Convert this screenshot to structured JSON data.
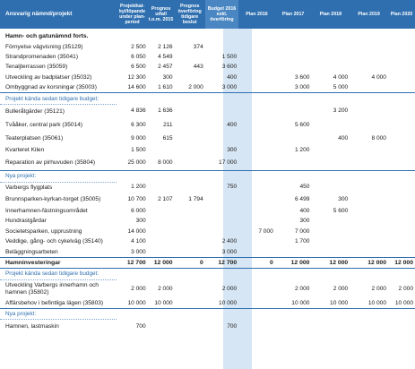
{
  "header": {
    "name": "Ansvarig nämnd/projekt",
    "c1": "Projektkal-kyl/löpande under plan-period",
    "c2": "Prognos utfall t.o.m. 2015",
    "c3": "Prognos överföring tidigare beslut",
    "c4": "Budget 2016 exkl. överföring",
    "c5": "Plan 2016",
    "c6": "Plan 2017",
    "c7": "Plan 2018",
    "c8": "Plan 2019",
    "c9": "Plan 2020"
  },
  "rows": [
    {
      "type": "section",
      "name": "Hamn- och gatunämnd forts.",
      "v": [
        "",
        "",
        "",
        "",
        "",
        "",
        "",
        "",
        ""
      ]
    },
    {
      "type": "item",
      "name": "Förnyelse vägvisning (35129)",
      "v": [
        "2 500",
        "2 126",
        "374",
        "",
        "",
        "",
        "",
        "",
        ""
      ]
    },
    {
      "type": "item",
      "name": "Strandpromenaden (35041)",
      "v": [
        "6 050",
        "4 549",
        "",
        "1 500",
        "",
        "",
        "",
        "",
        ""
      ]
    },
    {
      "type": "item",
      "name": "Tenaljterrassen (35059)",
      "v": [
        "6 500",
        "2 457",
        "443",
        "3 600",
        "",
        "",
        "",
        "",
        ""
      ]
    },
    {
      "type": "item",
      "name": "Utveckling av badplatser (35032)",
      "v": [
        "12 300",
        "300",
        "",
        "400",
        "",
        "3 600",
        "4 000",
        "4 000",
        ""
      ]
    },
    {
      "type": "item",
      "name": "Ombyggnad av korsningar (35003)",
      "v": [
        "14 600",
        "1 610",
        "2 000",
        "3 000",
        "",
        "3 000",
        "5 000",
        "",
        ""
      ]
    },
    {
      "type": "sub",
      "name": "Projekt kända sedan tidigare budget:",
      "v": [
        "",
        "",
        "",
        "",
        "",
        "",
        "",
        "",
        ""
      ]
    },
    {
      "type": "gap",
      "name": "Bulleråtgärder (35121)",
      "v": [
        "4 836",
        "1 636",
        "",
        "",
        "",
        "",
        "3 200",
        "",
        ""
      ]
    },
    {
      "type": "gap",
      "name": "Tvååker, central park (35014)",
      "v": [
        "6 300",
        "211",
        "",
        "400",
        "",
        "5 600",
        "",
        "",
        ""
      ]
    },
    {
      "type": "gap",
      "name": "Teaterplatsen (35061)",
      "v": [
        "9 000",
        "615",
        "",
        "",
        "",
        "",
        "400",
        "8 000",
        ""
      ]
    },
    {
      "type": "item",
      "name": "Kvarteret Kilen",
      "v": [
        "1 500",
        "",
        "",
        "300",
        "",
        "1 200",
        "",
        "",
        ""
      ]
    },
    {
      "type": "gap2",
      "name": "Reparation av pirhuvuden (35804)",
      "v": [
        "25 000",
        "8 000",
        "",
        "17 000",
        "",
        "",
        "",
        "",
        ""
      ]
    },
    {
      "type": "sub",
      "name": "Nya projekt:",
      "v": [
        "",
        "",
        "",
        "",
        "",
        "",
        "",
        "",
        ""
      ]
    },
    {
      "type": "item",
      "name": "Varbergs flygplats",
      "v": [
        "1 200",
        "",
        "",
        "750",
        "",
        "450",
        "",
        "",
        ""
      ]
    },
    {
      "type": "gap",
      "name": "Brunnsparken-kyrkan-torget (35005)",
      "v": [
        "10 700",
        "2 107",
        "1 794",
        "",
        "",
        "6 499",
        "300",
        "",
        ""
      ]
    },
    {
      "type": "item",
      "name": "Innerhamnen-fästningsområdet",
      "v": [
        "6 000",
        "",
        "",
        "",
        "",
        "400",
        "5 600",
        "",
        ""
      ]
    },
    {
      "type": "item",
      "name": "Hundrastgårdar",
      "v": [
        "300",
        "",
        "",
        "",
        "",
        "300",
        "",
        "",
        ""
      ]
    },
    {
      "type": "item",
      "name": "Societetsparken, upprustning",
      "v": [
        "14 000",
        "",
        "",
        "",
        "7 000",
        "7 000",
        "",
        "",
        ""
      ]
    },
    {
      "type": "item",
      "name": "Veddige, gång- och cykelväg (35140)",
      "v": [
        "4 100",
        "",
        "",
        "2 400",
        "",
        "1 700",
        "",
        "",
        ""
      ]
    },
    {
      "type": "item",
      "name": "Beläggningsarbeten",
      "v": [
        "3 000",
        "",
        "",
        "3 000",
        "",
        "",
        "",
        "",
        ""
      ]
    },
    {
      "type": "total",
      "name": "Hamninvesteringar",
      "v": [
        "12 700",
        "12 000",
        "0",
        "12 700",
        "0",
        "12 000",
        "12 000",
        "12 000",
        "12 000"
      ]
    },
    {
      "type": "sub",
      "name": "Projekt kända sedan tidigare budget:",
      "v": [
        "",
        "",
        "",
        "",
        "",
        "",
        "",
        "",
        ""
      ]
    },
    {
      "type": "two",
      "name": "Utveckling Varbergs innerhamn och hamnen (35802)",
      "v": [
        "2 000",
        "2 000",
        "",
        "2 000",
        "",
        "2 000",
        "2 000",
        "2 000",
        "2 000"
      ]
    },
    {
      "type": "item",
      "name": "Affärsbehov i befintliga lägen (35803)",
      "v": [
        "10 000",
        "10 000",
        "",
        "10 000",
        "",
        "10 000",
        "10 000",
        "10 000",
        "10 000"
      ]
    },
    {
      "type": "sub",
      "name": "Nya projekt:",
      "v": [
        "",
        "",
        "",
        "",
        "",
        "",
        "",
        "",
        ""
      ]
    },
    {
      "type": "gap",
      "name": "Hamnen, lastmaskin",
      "v": [
        "700",
        "",
        "",
        "700",
        "",
        "",
        "",
        "",
        ""
      ]
    }
  ]
}
